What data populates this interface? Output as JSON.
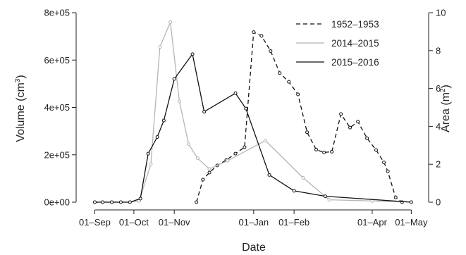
{
  "chart_data": {
    "type": "line",
    "xlabel": "Date",
    "ylabel_left": [
      "Volume (cm",
      "3",
      ")"
    ],
    "ylabel_right": [
      "Area (m",
      "2",
      ")"
    ],
    "x_ticks": [
      {
        "date": "2015-09-01",
        "label": "01–Sep"
      },
      {
        "date": "2015-10-01",
        "label": "01–Oct"
      },
      {
        "date": "2015-11-01",
        "label": "01–Nov"
      },
      {
        "date": "2016-01-01",
        "label": "01–Jan"
      },
      {
        "date": "2016-02-01",
        "label": "01–Feb"
      },
      {
        "date": "2016-04-01",
        "label": "01–Apr"
      },
      {
        "date": "2016-05-01",
        "label": "01–May"
      }
    ],
    "xlim": [
      "2015-08-22",
      "2016-05-10"
    ],
    "y_left": {
      "lim": [
        0,
        800000
      ],
      "ticks": [
        0,
        200000,
        400000,
        600000,
        800000
      ],
      "tick_labels": [
        "0e+00",
        "2e+05",
        "4e+05",
        "6e+05",
        "8e+05"
      ]
    },
    "y_right": {
      "lim": [
        0,
        10
      ],
      "ticks": [
        0,
        2,
        4,
        6,
        8,
        10
      ],
      "tick_labels": [
        "0",
        "2",
        "4",
        "6",
        "8",
        "10"
      ]
    },
    "legend_position": "top-right",
    "series": [
      {
        "name": "1952–1953",
        "color": "#111111",
        "dash": "6,4",
        "axis": "left",
        "points": [
          [
            "2015-11-18",
            0
          ],
          [
            "2015-11-23",
            95000
          ],
          [
            "2015-11-28",
            125000
          ],
          [
            "2015-12-04",
            155000
          ],
          [
            "2015-12-11",
            178000
          ],
          [
            "2015-12-18",
            205000
          ],
          [
            "2015-12-25",
            232000
          ],
          [
            "2016-01-01",
            718000
          ],
          [
            "2016-01-07",
            702000
          ],
          [
            "2016-01-14",
            638000
          ],
          [
            "2016-01-21",
            545000
          ],
          [
            "2016-01-28",
            508000
          ],
          [
            "2016-02-04",
            455000
          ],
          [
            "2016-02-11",
            295000
          ],
          [
            "2016-02-18",
            222000
          ],
          [
            "2016-02-24",
            210000
          ],
          [
            "2016-03-01",
            213000
          ],
          [
            "2016-03-08",
            372000
          ],
          [
            "2016-03-15",
            315000
          ],
          [
            "2016-03-21",
            340000
          ],
          [
            "2016-03-28",
            270000
          ],
          [
            "2016-04-04",
            220000
          ],
          [
            "2016-04-10",
            168000
          ],
          [
            "2016-04-13",
            130000
          ],
          [
            "2016-04-19",
            20000
          ],
          [
            "2016-04-24",
            0
          ]
        ]
      },
      {
        "name": "2014–2015",
        "color": "#b5b5b5",
        "dash": "",
        "axis": "left",
        "points": [
          [
            "2015-09-01",
            0
          ],
          [
            "2015-09-07",
            0
          ],
          [
            "2015-09-14",
            0
          ],
          [
            "2015-09-21",
            0
          ],
          [
            "2015-09-28",
            0
          ],
          [
            "2015-10-05",
            5000
          ],
          [
            "2015-10-14",
            160000
          ],
          [
            "2015-10-21",
            655000
          ],
          [
            "2015-10-29",
            760000
          ],
          [
            "2015-11-05",
            425000
          ],
          [
            "2015-11-12",
            245000
          ],
          [
            "2015-11-19",
            185000
          ],
          [
            "2015-11-28",
            140000
          ],
          [
            "2015-12-12",
            175000
          ],
          [
            "2016-01-10",
            260000
          ],
          [
            "2016-02-08",
            103000
          ],
          [
            "2016-02-28",
            10000
          ],
          [
            "2016-04-01",
            5000
          ],
          [
            "2016-05-01",
            0
          ]
        ]
      },
      {
        "name": "2015–2016",
        "color": "#111111",
        "dash": "",
        "axis": "left",
        "points": [
          [
            "2015-09-01",
            0
          ],
          [
            "2015-09-07",
            0
          ],
          [
            "2015-09-14",
            0
          ],
          [
            "2015-09-21",
            0
          ],
          [
            "2015-09-28",
            0
          ],
          [
            "2015-10-06",
            15000
          ],
          [
            "2015-10-12",
            205000
          ],
          [
            "2015-10-19",
            275000
          ],
          [
            "2015-10-24",
            345000
          ],
          [
            "2015-11-01",
            520000
          ],
          [
            "2015-11-15",
            625000
          ],
          [
            "2015-11-24",
            382000
          ],
          [
            "2015-12-18",
            460000
          ],
          [
            "2015-12-26",
            395000
          ],
          [
            "2016-01-13",
            115000
          ],
          [
            "2016-02-01",
            48000
          ],
          [
            "2016-02-25",
            25000
          ],
          [
            "2016-05-01",
            0
          ]
        ]
      }
    ]
  }
}
